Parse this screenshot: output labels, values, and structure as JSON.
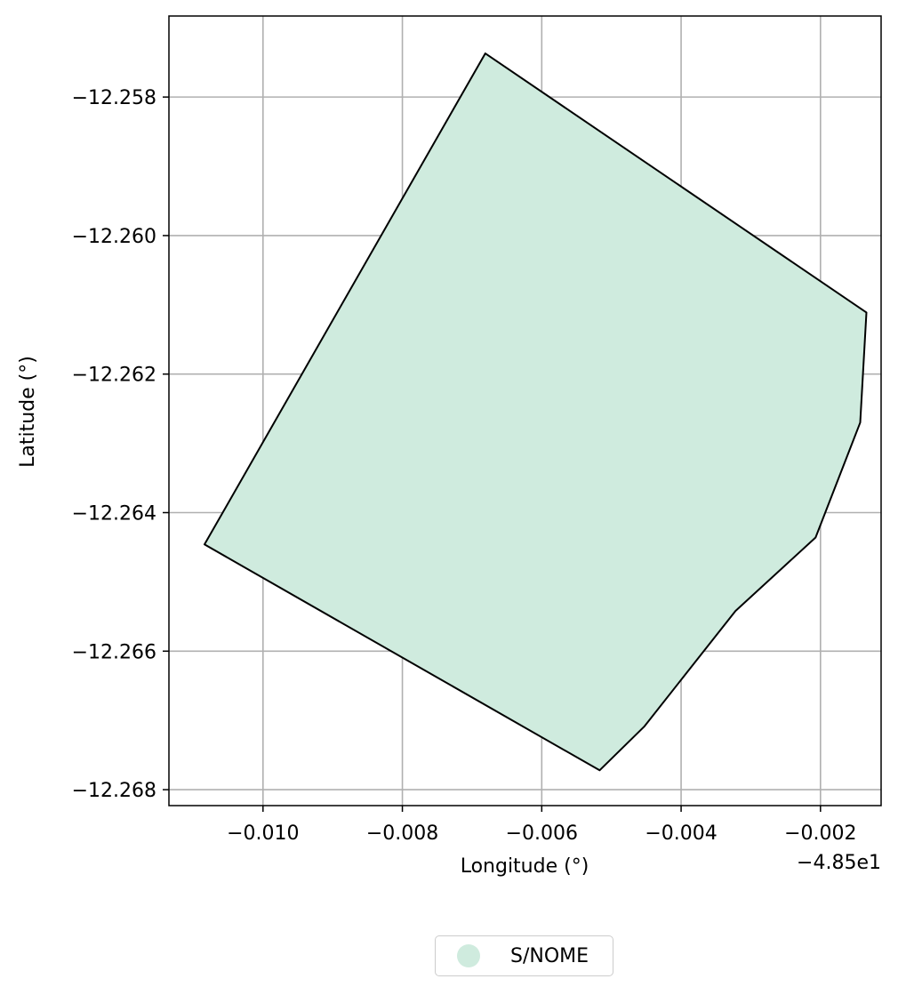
{
  "chart_data": {
    "type": "map",
    "xlabel": "Longitude (°)",
    "ylabel": "Latitude (°)",
    "x_offset_label": "−4.85e1",
    "x_offset": -48.5,
    "xlim": [
      -0.01135,
      -0.00113
    ],
    "ylim": [
      -12.26823,
      -12.25683
    ],
    "grid": true,
    "x_ticks": [
      -0.01,
      -0.008,
      -0.006,
      -0.004,
      -0.002
    ],
    "x_tick_labels": [
      "−0.010",
      "−0.008",
      "−0.006",
      "−0.004",
      "−0.002"
    ],
    "y_ticks": [
      -12.258,
      -12.26,
      -12.262,
      -12.264,
      -12.266,
      -12.268
    ],
    "y_tick_labels": [
      "−12.258",
      "−12.260",
      "−12.262",
      "−12.264",
      "−12.266",
      "−12.268"
    ],
    "polygon": [
      [
        -0.00681,
        -12.25737
      ],
      [
        -0.00134,
        -12.26111
      ],
      [
        -0.00143,
        -12.2627
      ],
      [
        -0.00207,
        -12.26436
      ],
      [
        -0.00322,
        -12.26542
      ],
      [
        -0.00453,
        -12.26709
      ],
      [
        -0.00517,
        -12.26772
      ],
      [
        -0.01084,
        -12.26446
      ]
    ],
    "fill_color": "#cfebde",
    "edge_color": "#000000",
    "legend": {
      "position": "bottom-center",
      "entries": [
        {
          "label": "S/NOME",
          "color": "#cfebde"
        }
      ]
    }
  }
}
